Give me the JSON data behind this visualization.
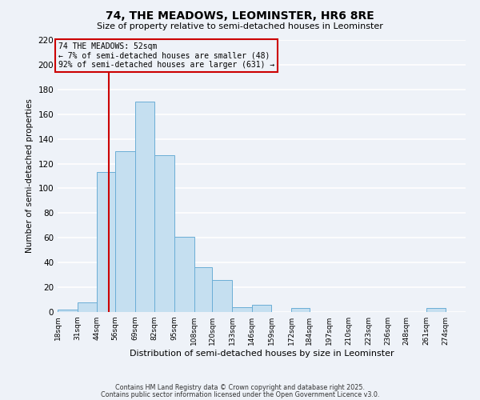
{
  "title": "74, THE MEADOWS, LEOMINSTER, HR6 8RE",
  "subtitle": "Size of property relative to semi-detached houses in Leominster",
  "xlabel": "Distribution of semi-detached houses by size in Leominster",
  "ylabel": "Number of semi-detached properties",
  "footer1": "Contains HM Land Registry data © Crown copyright and database right 2025.",
  "footer2": "Contains public sector information licensed under the Open Government Licence v3.0.",
  "bin_labels": [
    "18sqm",
    "31sqm",
    "44sqm",
    "56sqm",
    "69sqm",
    "82sqm",
    "95sqm",
    "108sqm",
    "120sqm",
    "133sqm",
    "146sqm",
    "159sqm",
    "172sqm",
    "184sqm",
    "197sqm",
    "210sqm",
    "223sqm",
    "236sqm",
    "248sqm",
    "261sqm",
    "274sqm"
  ],
  "bin_edges": [
    18,
    31,
    44,
    56,
    69,
    82,
    95,
    108,
    120,
    133,
    146,
    159,
    172,
    184,
    197,
    210,
    223,
    236,
    248,
    261,
    274
  ],
  "bar_heights": [
    2,
    8,
    113,
    130,
    170,
    127,
    61,
    36,
    26,
    4,
    6,
    0,
    3,
    0,
    0,
    0,
    0,
    0,
    0,
    3
  ],
  "bar_color": "#c5dff0",
  "bar_edge_color": "#6baed6",
  "bg_color": "#eef2f8",
  "grid_color": "#ffffff",
  "vline_x": 52,
  "vline_color": "#cc0000",
  "annotation_text": "74 THE MEADOWS: 52sqm\n← 7% of semi-detached houses are smaller (48)\n92% of semi-detached houses are larger (631) →",
  "annotation_box_color": "#cc0000",
  "ylim": [
    0,
    220
  ],
  "yticks": [
    0,
    20,
    40,
    60,
    80,
    100,
    120,
    140,
    160,
    180,
    200,
    220
  ]
}
